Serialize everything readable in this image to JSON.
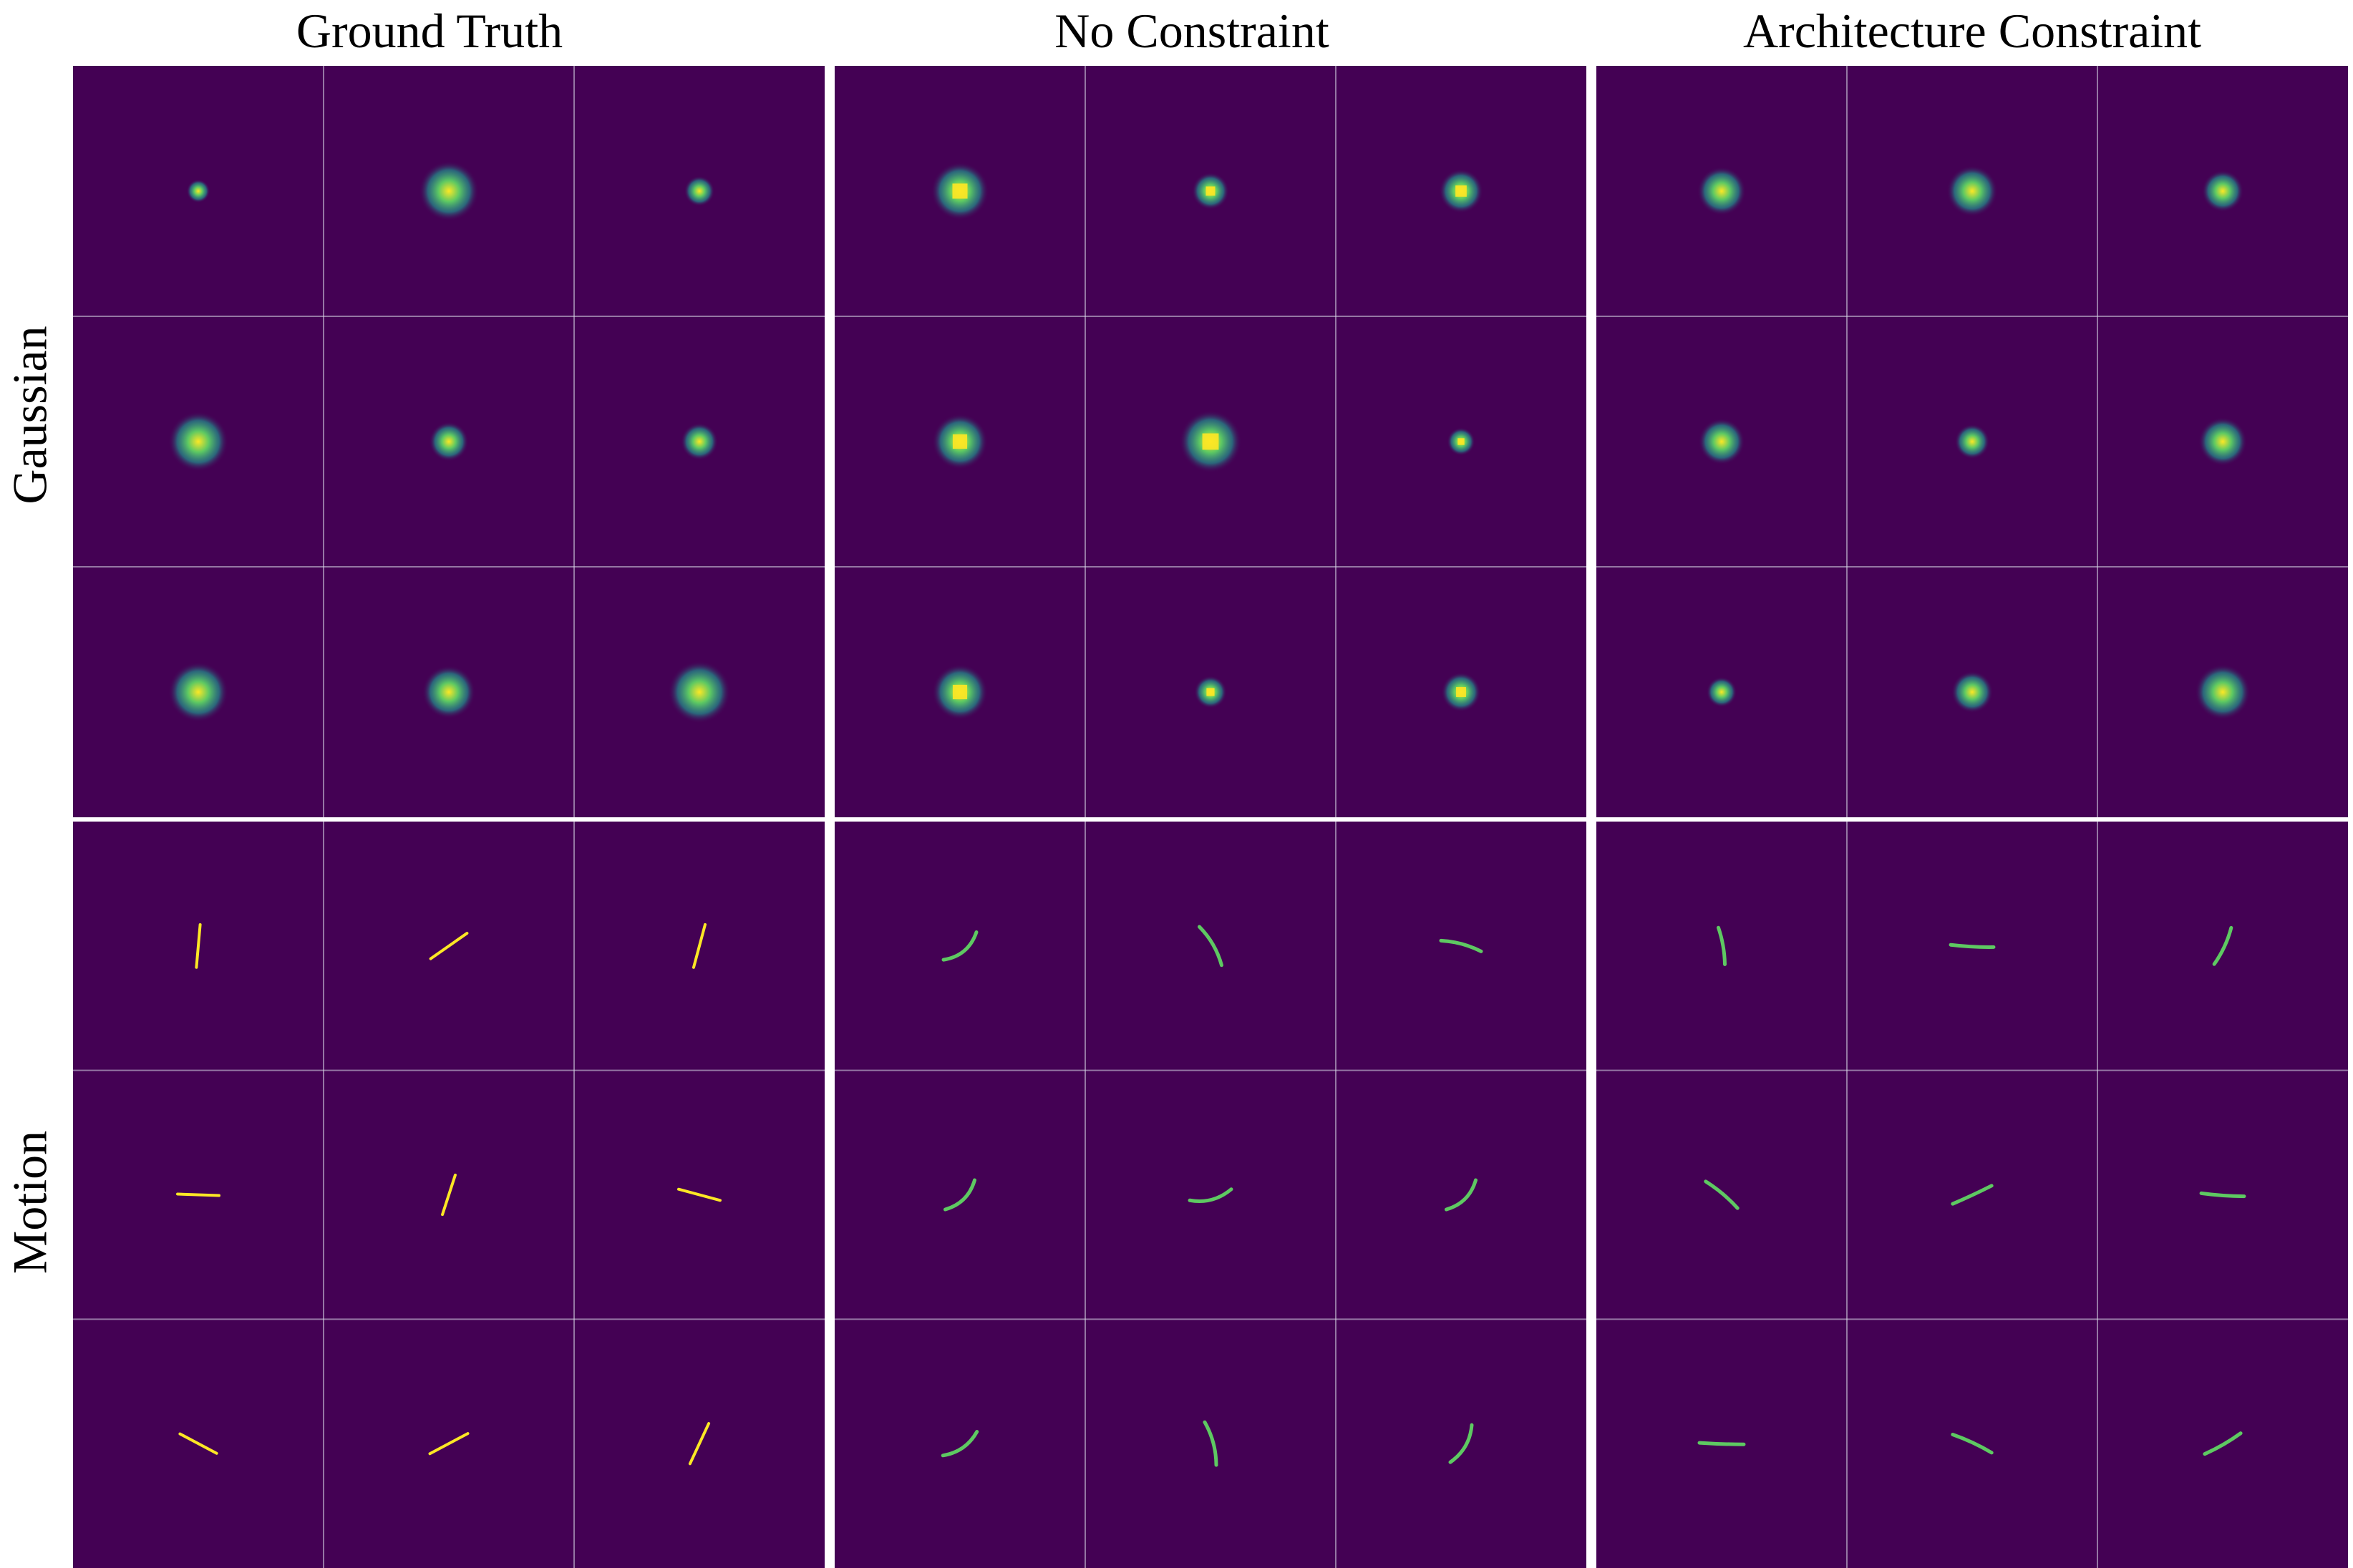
{
  "columns": [
    "Ground Truth",
    "No Constraint",
    "Architecture Constraint"
  ],
  "rows": [
    "Gaussian",
    "Motion"
  ],
  "colors": {
    "background": "#440154",
    "grid_line": "#d9d9e6",
    "kernel_core": "#fde725",
    "kernel_mid": "#5ec962",
    "kernel_edge": "#21918c"
  },
  "panels": [
    {
      "name": "ground-truth-gaussian",
      "kind": "gaussian",
      "gridlines": true,
      "cells": [
        {
          "size": 0.2
        },
        {
          "size": 1.0
        },
        {
          "size": 0.35
        },
        {
          "size": 1.0
        },
        {
          "size": 0.55
        },
        {
          "size": 0.5
        },
        {
          "size": 1.0
        },
        {
          "size": 0.85
        },
        {
          "size": 1.05
        }
      ]
    },
    {
      "name": "no-constraint-gaussian",
      "kind": "gaussian",
      "gridlines": true,
      "square": true,
      "cells": [
        {
          "size": 0.95
        },
        {
          "size": 0.5
        },
        {
          "size": 0.65
        },
        {
          "size": 0.9
        },
        {
          "size": 1.05
        },
        {
          "size": 0.3
        },
        {
          "size": 0.9
        },
        {
          "size": 0.4
        },
        {
          "size": 0.55
        }
      ]
    },
    {
      "name": "architecture-constraint-gaussian",
      "kind": "gaussian",
      "gridlines": true,
      "cells": [
        {
          "size": 0.75
        },
        {
          "size": 0.8
        },
        {
          "size": 0.6
        },
        {
          "size": 0.7
        },
        {
          "size": 0.45
        },
        {
          "size": 0.75
        },
        {
          "size": 0.35
        },
        {
          "size": 0.6
        },
        {
          "size": 0.9
        }
      ]
    },
    {
      "name": "ground-truth-motion",
      "kind": "line",
      "gridlines": true,
      "cells": [
        {
          "angle": -85,
          "len": 60
        },
        {
          "angle": -35,
          "len": 62
        },
        {
          "angle": -75,
          "len": 62
        },
        {
          "angle": 2,
          "len": 58
        },
        {
          "angle": -72,
          "len": 58
        },
        {
          "angle": 15,
          "len": 60
        },
        {
          "angle": 28,
          "len": 58
        },
        {
          "angle": -28,
          "len": 60
        },
        {
          "angle": -65,
          "len": 62
        }
      ]
    },
    {
      "name": "no-constraint-motion",
      "kind": "curve",
      "gridlines": true,
      "cells": [
        {
          "angle": -40,
          "len": 60,
          "bend": 18
        },
        {
          "angle": 60,
          "len": 62,
          "bend": -8
        },
        {
          "angle": 15,
          "len": 58,
          "bend": -6
        },
        {
          "angle": -45,
          "len": 58,
          "bend": 16
        },
        {
          "angle": -15,
          "len": 60,
          "bend": 14
        },
        {
          "angle": -45,
          "len": 58,
          "bend": 16
        },
        {
          "angle": -35,
          "len": 58,
          "bend": 14
        },
        {
          "angle": 75,
          "len": 62,
          "bend": -8
        },
        {
          "angle": -60,
          "len": 60,
          "bend": 14
        }
      ]
    },
    {
      "name": "architecture-constraint-motion",
      "kind": "curve",
      "gridlines": true,
      "cells": [
        {
          "angle": 80,
          "len": 52,
          "bend": -4
        },
        {
          "angle": 3,
          "len": 60,
          "bend": 2
        },
        {
          "angle": -65,
          "len": 56,
          "bend": 5
        },
        {
          "angle": 40,
          "len": 58,
          "bend": -4
        },
        {
          "angle": -25,
          "len": 60,
          "bend": 1
        },
        {
          "angle": 4,
          "len": 60,
          "bend": 2
        },
        {
          "angle": 2,
          "len": 62,
          "bend": 1
        },
        {
          "angle": 25,
          "len": 60,
          "bend": -3
        },
        {
          "angle": -30,
          "len": 58,
          "bend": 3
        }
      ]
    }
  ]
}
